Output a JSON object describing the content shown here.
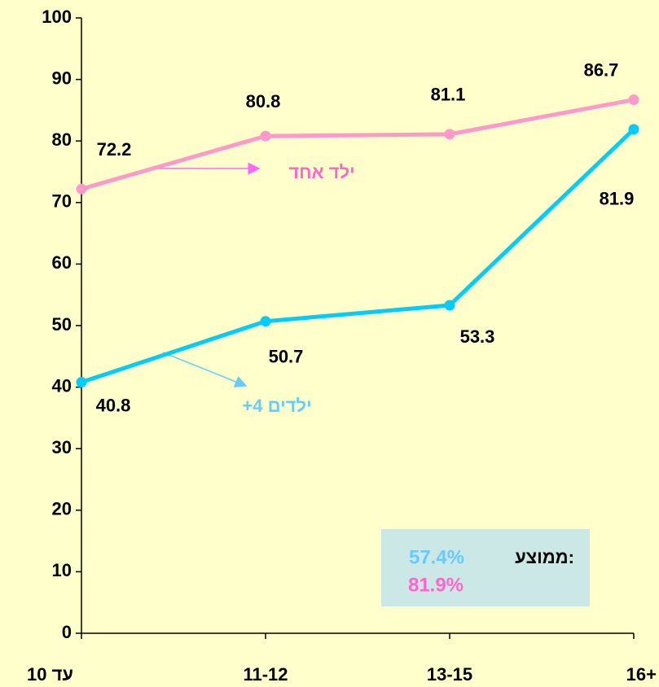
{
  "chart_data": {
    "type": "line",
    "categories": [
      "עד 10",
      "11-12",
      "13-15",
      "16+"
    ],
    "series": [
      {
        "name": "ילד אחד",
        "color": "#ff99cc",
        "label_color": "#ff66cc",
        "values": [
          72.2,
          80.8,
          81.1,
          86.7
        ]
      },
      {
        "name": "+4 ילדים",
        "color": "#00ccff",
        "label_color": "#66ccff",
        "values": [
          40.8,
          50.7,
          53.3,
          81.9
        ]
      }
    ],
    "ylim": [
      0,
      100
    ],
    "yticks": [
      0,
      10,
      20,
      30,
      40,
      50,
      60,
      70,
      80,
      90,
      100
    ],
    "annotation": {
      "title": "ממוצע:",
      "values": [
        {
          "text": "57.4%",
          "color": "#66ccff"
        },
        {
          "text": "81.9%",
          "color": "#ff66cc"
        }
      ]
    }
  }
}
